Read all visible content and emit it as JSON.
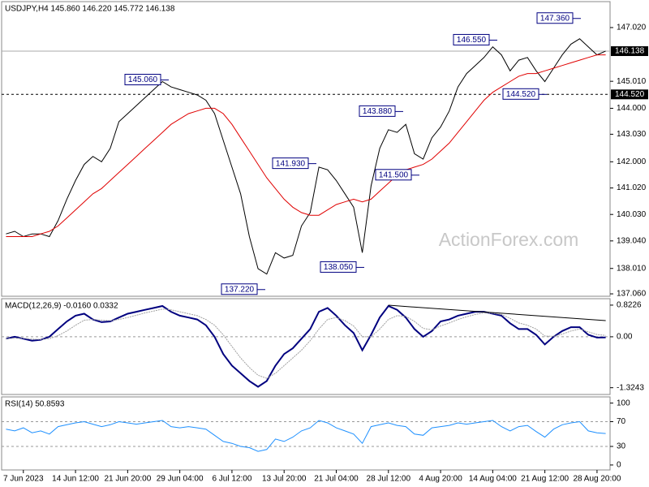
{
  "chart_data": [
    {
      "type": "line",
      "title": "USDJPY,H4  145.860 146.220 145.772 146.138",
      "watermark": "ActionForex.com",
      "ylim": [
        136.97,
        147.99
      ],
      "yticks": [
        {
          "value": 147.02,
          "label": "147.020"
        },
        {
          "value": 145.01,
          "label": "145.010"
        },
        {
          "value": 144.0,
          "label": "144.000"
        },
        {
          "value": 143.03,
          "label": "143.030"
        },
        {
          "value": 142.0,
          "label": "142.000"
        },
        {
          "value": 141.02,
          "label": "141.020"
        },
        {
          "value": 140.03,
          "label": "140.030"
        },
        {
          "value": 139.04,
          "label": "139.040"
        },
        {
          "value": 138.01,
          "label": "138.010"
        },
        {
          "value": 137.06,
          "label": "137.060"
        }
      ],
      "grid": false,
      "series": [
        {
          "color": "#000000",
          "values": [
            139.3,
            139.4,
            139.2,
            139.3,
            139.3,
            139.2,
            139.8,
            140.6,
            141.3,
            141.9,
            142.2,
            142.0,
            142.5,
            143.5,
            143.8,
            144.1,
            144.4,
            144.7,
            145.0,
            144.8,
            144.7,
            144.6,
            144.5,
            144.3,
            143.8,
            142.8,
            141.8,
            140.8,
            139.2,
            138.0,
            137.8,
            138.6,
            138.4,
            138.5,
            139.6,
            140.1,
            141.8,
            141.7,
            141.3,
            140.8,
            140.3,
            138.6,
            141.1,
            142.5,
            143.2,
            143.1,
            143.4,
            142.3,
            142.1,
            142.9,
            143.3,
            143.9,
            144.8,
            145.3,
            145.6,
            145.9,
            146.3,
            146.0,
            145.4,
            145.8,
            145.9,
            145.4,
            145.0,
            145.5,
            146.0,
            146.4,
            146.6,
            146.3,
            146.0,
            146.14
          ]
        },
        {
          "color": "#e00000",
          "values": [
            139.2,
            139.2,
            139.2,
            139.2,
            139.3,
            139.4,
            139.6,
            139.9,
            140.2,
            140.5,
            140.8,
            141.0,
            141.3,
            141.6,
            141.9,
            142.2,
            142.5,
            142.8,
            143.1,
            143.4,
            143.6,
            143.8,
            143.9,
            144.0,
            144.0,
            143.8,
            143.4,
            142.9,
            142.4,
            141.9,
            141.4,
            141.0,
            140.6,
            140.3,
            140.1,
            140.0,
            140.0,
            140.2,
            140.4,
            140.5,
            140.6,
            140.5,
            140.6,
            140.9,
            141.2,
            141.5,
            141.7,
            141.8,
            141.9,
            142.1,
            142.4,
            142.7,
            143.1,
            143.5,
            143.9,
            144.3,
            144.6,
            144.8,
            145.0,
            145.2,
            145.3,
            145.3,
            145.4,
            145.5,
            145.6,
            145.7,
            145.8,
            145.9,
            146.0,
            146.0
          ]
        }
      ],
      "hlines": [
        {
          "value": 146.138,
          "label": "146.138",
          "style": "solid"
        },
        {
          "value": 144.52,
          "label": "144.520",
          "style": "dashed"
        }
      ],
      "annotations": [
        {
          "value": 145.06,
          "label": "145.060"
        },
        {
          "value": 147.36,
          "label": "147.360"
        },
        {
          "value": 146.55,
          "label": "146.550"
        },
        {
          "value": 144.52,
          "label": "144.520"
        },
        {
          "value": 143.88,
          "label": "143.880"
        },
        {
          "value": 141.93,
          "label": "141.930"
        },
        {
          "value": 141.5,
          "label": "141.500"
        },
        {
          "value": 138.05,
          "label": "138.050"
        },
        {
          "value": 137.22,
          "label": "137.220"
        }
      ]
    },
    {
      "type": "line",
      "title": "MACD(12,26,9) -0.0160 0.0332",
      "ylim": [
        -1.5,
        0.99
      ],
      "yticks": [
        0.8226,
        {
          "value": 0,
          "label": "0.00"
        },
        -1.3243
      ],
      "grid": true,
      "series": [
        {
          "color": "#00007f",
          "values": [
            -0.05,
            0.0,
            -0.05,
            -0.1,
            -0.08,
            0.0,
            0.2,
            0.4,
            0.55,
            0.6,
            0.45,
            0.38,
            0.4,
            0.5,
            0.6,
            0.65,
            0.7,
            0.75,
            0.8,
            0.65,
            0.55,
            0.5,
            0.45,
            0.3,
            0.0,
            -0.45,
            -0.75,
            -0.95,
            -1.15,
            -1.3,
            -1.15,
            -0.75,
            -0.45,
            -0.3,
            -0.05,
            0.2,
            0.65,
            0.75,
            0.55,
            0.3,
            0.1,
            -0.35,
            0.05,
            0.5,
            0.8,
            0.7,
            0.5,
            0.2,
            0.0,
            0.15,
            0.4,
            0.45,
            0.55,
            0.6,
            0.65,
            0.65,
            0.6,
            0.55,
            0.35,
            0.2,
            0.2,
            0.05,
            -0.2,
            0.0,
            0.15,
            0.25,
            0.25,
            0.05,
            -0.02,
            -0.016
          ]
        },
        {
          "color": "#a0a0a0",
          "values": [
            -0.05,
            -0.04,
            -0.04,
            -0.06,
            -0.07,
            -0.05,
            0.03,
            0.15,
            0.3,
            0.43,
            0.45,
            0.43,
            0.42,
            0.45,
            0.5,
            0.56,
            0.62,
            0.67,
            0.72,
            0.7,
            0.65,
            0.6,
            0.55,
            0.45,
            0.3,
            0.05,
            -0.25,
            -0.55,
            -0.8,
            -1.0,
            -1.08,
            -0.95,
            -0.75,
            -0.55,
            -0.35,
            -0.1,
            0.2,
            0.45,
            0.5,
            0.42,
            0.28,
            0.0,
            0.0,
            0.2,
            0.45,
            0.55,
            0.53,
            0.4,
            0.22,
            0.18,
            0.28,
            0.36,
            0.45,
            0.52,
            0.58,
            0.62,
            0.61,
            0.58,
            0.48,
            0.36,
            0.3,
            0.2,
            0.02,
            0.01,
            0.07,
            0.15,
            0.2,
            0.13,
            0.06,
            0.0332
          ]
        }
      ],
      "trendline": {
        "x": [
          44,
          69
        ],
        "values": [
          0.82,
          0.42
        ]
      }
    },
    {
      "type": "line",
      "title": "RSI(14) 50.8593",
      "ylim": [
        -8,
        110
      ],
      "yticks": [
        100,
        70,
        30,
        0
      ],
      "grid": true,
      "series": [
        {
          "color": "#1e90ff",
          "values": [
            58,
            55,
            60,
            52,
            55,
            50,
            62,
            65,
            68,
            70,
            66,
            62,
            65,
            70,
            68,
            66,
            68,
            70,
            72,
            62,
            60,
            62,
            60,
            58,
            48,
            38,
            35,
            30,
            28,
            22,
            25,
            42,
            38,
            45,
            55,
            60,
            72,
            68,
            60,
            55,
            50,
            35,
            62,
            65,
            68,
            64,
            62,
            50,
            48,
            60,
            62,
            64,
            68,
            66,
            68,
            70,
            72,
            62,
            55,
            62,
            64,
            54,
            45,
            58,
            65,
            68,
            70,
            55,
            52,
            50.8593
          ]
        }
      ],
      "categories": [
        null,
        null,
        "7 Jun 2023",
        null,
        null,
        null,
        null,
        null,
        "14 Jun 12:00",
        null,
        null,
        null,
        null,
        null,
        "21 Jun 20:00",
        null,
        null,
        null,
        null,
        null,
        "29 Jun 04:00",
        null,
        null,
        null,
        null,
        null,
        "6 Jul 12:00",
        null,
        null,
        null,
        null,
        null,
        "13 Jul 20:00",
        null,
        null,
        null,
        null,
        null,
        "21 Jul 04:00",
        null,
        null,
        null,
        null,
        null,
        "28 Jul 12:00",
        null,
        null,
        null,
        null,
        null,
        "4 Aug 20:00",
        null,
        null,
        null,
        null,
        null,
        "14 Aug 04:00",
        null,
        null,
        null,
        null,
        null,
        "21 Aug 12:00",
        null,
        null,
        null,
        null,
        null,
        "28 Aug 20:00",
        null
      ]
    }
  ]
}
